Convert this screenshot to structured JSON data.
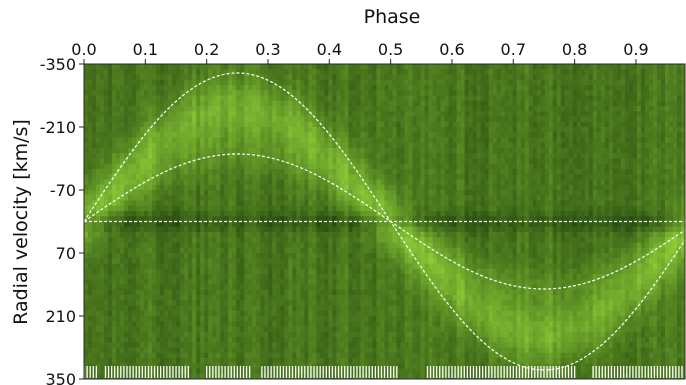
{
  "chart_data": {
    "type": "heatmap",
    "title": "",
    "xlabel": "Phase",
    "ylabel": "Radial velocity [km/s]",
    "x_axis_position": "top",
    "xlim": [
      0.0,
      0.98
    ],
    "ylim": [
      -350,
      350
    ],
    "y_inverted": true,
    "x_ticks": [
      "0.0",
      "0.1",
      "0.2",
      "0.3",
      "0.4",
      "0.5",
      "0.6",
      "0.7",
      "0.8",
      "0.9"
    ],
    "y_ticks": [
      "-350",
      "-210",
      "-70",
      "70",
      "210",
      "350"
    ],
    "colormap": "greens",
    "grid": false,
    "reference_line": {
      "y": 0,
      "style": "dashed",
      "color": "#ffffff"
    },
    "series": [
      {
        "amplitude": 330,
        "gamma": 0,
        "zero_phase": 0.0
      },
      {
        "amplitude": 150,
        "gamma": 0,
        "zero_phase": 0.0
      }
    ],
    "observed_phases": [
      0.0,
      0.005,
      0.01,
      0.015,
      0.02,
      0.035,
      0.04,
      0.045,
      0.05,
      0.055,
      0.06,
      0.065,
      0.07,
      0.075,
      0.08,
      0.085,
      0.09,
      0.095,
      0.1,
      0.105,
      0.11,
      0.115,
      0.12,
      0.125,
      0.13,
      0.135,
      0.14,
      0.145,
      0.15,
      0.155,
      0.16,
      0.165,
      0.17,
      0.2,
      0.205,
      0.21,
      0.215,
      0.22,
      0.225,
      0.23,
      0.235,
      0.24,
      0.245,
      0.25,
      0.255,
      0.26,
      0.265,
      0.27,
      0.29,
      0.295,
      0.3,
      0.305,
      0.31,
      0.315,
      0.32,
      0.325,
      0.33,
      0.335,
      0.34,
      0.345,
      0.35,
      0.355,
      0.36,
      0.365,
      0.37,
      0.375,
      0.38,
      0.385,
      0.39,
      0.395,
      0.4,
      0.405,
      0.41,
      0.415,
      0.42,
      0.425,
      0.43,
      0.435,
      0.44,
      0.445,
      0.45,
      0.455,
      0.46,
      0.465,
      0.47,
      0.475,
      0.48,
      0.485,
      0.49,
      0.495,
      0.5,
      0.505,
      0.51,
      0.56,
      0.565,
      0.57,
      0.575,
      0.58,
      0.585,
      0.59,
      0.595,
      0.6,
      0.605,
      0.61,
      0.615,
      0.62,
      0.625,
      0.63,
      0.635,
      0.64,
      0.645,
      0.65,
      0.655,
      0.66,
      0.665,
      0.67,
      0.675,
      0.68,
      0.685,
      0.69,
      0.695,
      0.7,
      0.705,
      0.71,
      0.715,
      0.72,
      0.725,
      0.73,
      0.735,
      0.74,
      0.745,
      0.75,
      0.755,
      0.76,
      0.765,
      0.77,
      0.775,
      0.78,
      0.785,
      0.79,
      0.795,
      0.8,
      0.83,
      0.835,
      0.84,
      0.845,
      0.85,
      0.855,
      0.86,
      0.865,
      0.87,
      0.875,
      0.88,
      0.885,
      0.89,
      0.895,
      0.9,
      0.905,
      0.91,
      0.915,
      0.92,
      0.925,
      0.93,
      0.935,
      0.94,
      0.945,
      0.95,
      0.955,
      0.96,
      0.965,
      0.97,
      0.975
    ]
  }
}
